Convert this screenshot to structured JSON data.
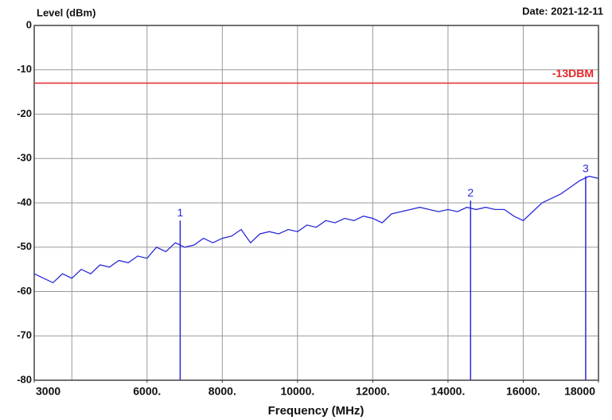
{
  "chart_data": {
    "type": "line",
    "title": "Level (dBm)",
    "subtitle": "Date: 2021-12-11",
    "x_label": "Frequency (MHz)",
    "xlim": [
      3000,
      18000
    ],
    "ylim": [
      -80,
      0
    ],
    "xticks": [
      3000,
      {
        "value": 6000,
        "label": "6000."
      },
      {
        "value": 8000,
        "label": "8000."
      },
      {
        "value": 10000,
        "label": "10000."
      },
      {
        "value": 12000,
        "label": "12000."
      },
      {
        "value": 14000,
        "label": "14000."
      },
      {
        "value": 16000,
        "label": "16000."
      },
      18000
    ],
    "x_gridlines": [
      4000,
      6000,
      8000,
      10000,
      12000,
      14000,
      16000
    ],
    "yticks": [
      0,
      -10,
      -20,
      -30,
      -40,
      -50,
      -60,
      -70,
      -80
    ],
    "grid": true,
    "reference_line": {
      "value": -13,
      "label": "-13DBM",
      "color": "#e8262a"
    },
    "markers": [
      {
        "label": "1",
        "x": 6880,
        "value": -44
      },
      {
        "label": "2",
        "x": 14600,
        "value": -39.5
      },
      {
        "label": "3",
        "x": 17660,
        "value": -34
      }
    ],
    "series": [
      {
        "color": "#2a2ad8",
        "x": [
          3000,
          3250,
          3500,
          3750,
          4000,
          4250,
          4500,
          4750,
          5000,
          5250,
          5500,
          5750,
          6000,
          6250,
          6500,
          6750,
          7000,
          7250,
          7500,
          7750,
          8000,
          8250,
          8500,
          8750,
          9000,
          9250,
          9500,
          9750,
          10000,
          10250,
          10500,
          10750,
          11000,
          11250,
          11500,
          11750,
          12000,
          12250,
          12500,
          12750,
          13000,
          13250,
          13500,
          13750,
          14000,
          14250,
          14500,
          14750,
          15000,
          15250,
          15500,
          15750,
          16000,
          16250,
          16500,
          16750,
          17000,
          17250,
          17500,
          17750,
          18000
        ],
        "values": [
          -56,
          -57,
          -58,
          -56,
          -57,
          -55,
          -56,
          -54,
          -54.5,
          -53,
          -53.5,
          -52,
          -52.5,
          -50,
          -51,
          -49,
          -50,
          -49.5,
          -48,
          -49,
          -48,
          -47.5,
          -46,
          -49,
          -47,
          -46.5,
          -47,
          -46,
          -46.5,
          -45,
          -45.5,
          -44,
          -44.5,
          -43.5,
          -44,
          -43,
          -43.5,
          -44.5,
          -42.5,
          -42,
          -41.5,
          -41,
          -41.5,
          -42,
          -41.5,
          -42,
          -41,
          -41.5,
          -41,
          -41.5,
          -41.5,
          -43,
          -44,
          -42,
          -40,
          -39,
          -38,
          -36.5,
          -35,
          -34,
          -34.5
        ]
      }
    ]
  }
}
